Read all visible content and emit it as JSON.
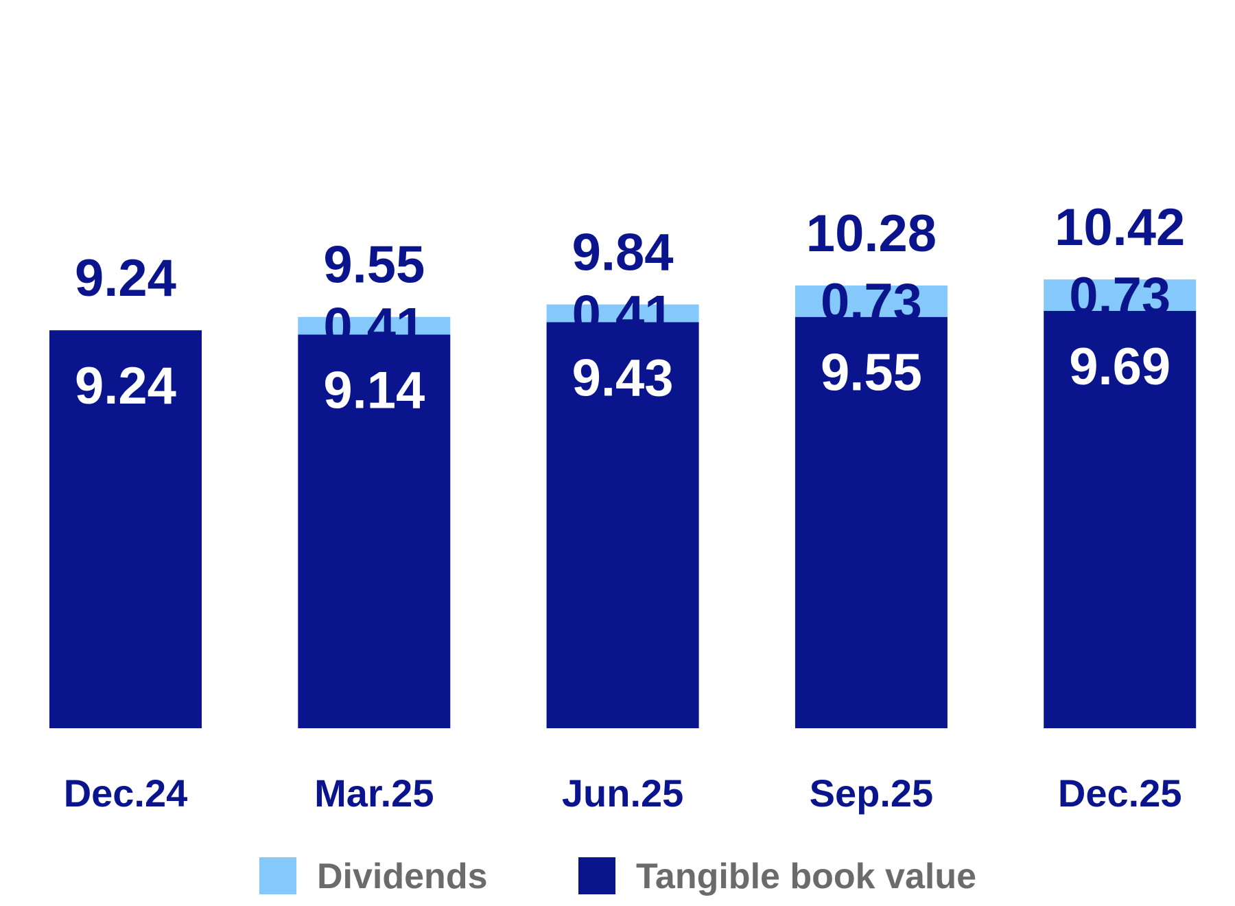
{
  "chart_data": {
    "type": "bar",
    "stacked": true,
    "categories": [
      "Dec.24",
      "Mar.25",
      "Jun.25",
      "Sep.25",
      "Dec.25"
    ],
    "series": [
      {
        "name": "Tangible book value",
        "values": [
          9.24,
          9.14,
          9.43,
          9.55,
          9.69
        ],
        "labels": [
          "9.24",
          "9.14",
          "9.43",
          "9.55",
          "9.69"
        ],
        "color": "#0a148c",
        "label_color": "#ffffff"
      },
      {
        "name": "Dividends",
        "values": [
          0,
          0.41,
          0.41,
          0.73,
          0.73
        ],
        "labels": [
          "",
          "0.41",
          "0.41",
          "0.73",
          "0.73"
        ],
        "color": "#85c8fb",
        "label_color": "#0a148c"
      }
    ],
    "totals": [
      9.24,
      9.55,
      9.84,
      10.28,
      10.42
    ],
    "total_labels": [
      "9.24",
      "9.55",
      "9.84",
      "10.28",
      "10.42"
    ],
    "title": "",
    "xlabel": "",
    "ylabel": "",
    "grid": false,
    "legend_position": "bottom-center",
    "colors": {
      "text_dark": "#0a148c",
      "legend_text": "#6b6b6b",
      "background": "#ffffff"
    }
  },
  "legend": {
    "items": [
      "Dividends",
      "Tangible book value"
    ]
  }
}
